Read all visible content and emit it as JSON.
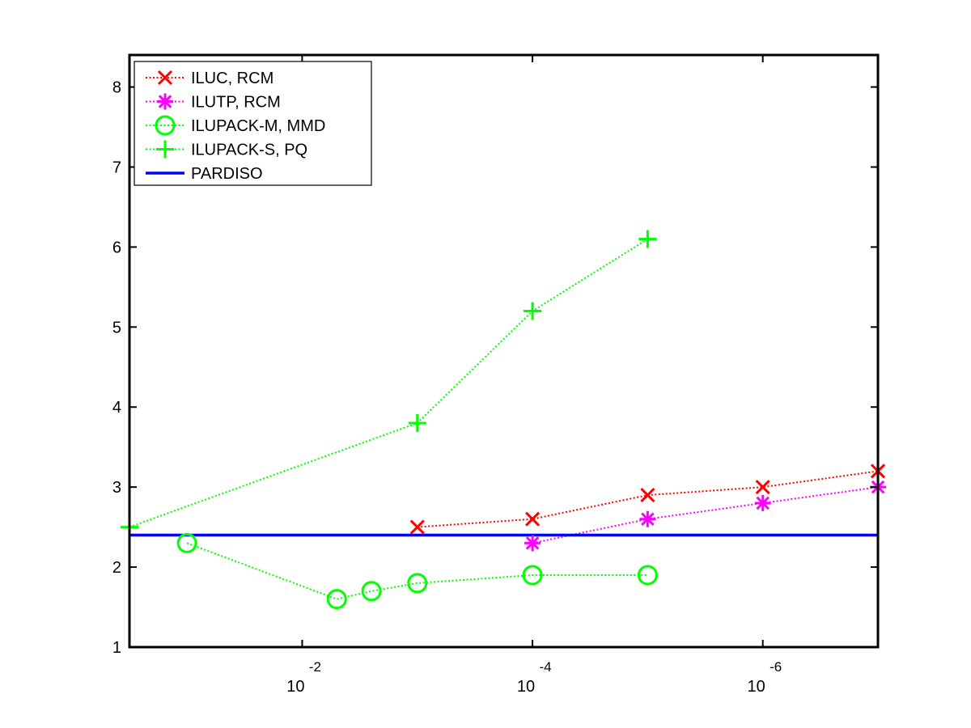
{
  "chart_data": {
    "type": "line",
    "title": "",
    "xlabel": "",
    "ylabel": "",
    "xscale": "log",
    "xaxis_direction": "decreasing",
    "xlim": [
      0.316,
      1e-07
    ],
    "ylim": [
      1,
      8.4
    ],
    "grid": false,
    "legend_position": "top-left",
    "yticks": [
      {
        "value": 1,
        "label": "1"
      },
      {
        "value": 2,
        "label": "2"
      },
      {
        "value": 3,
        "label": "3"
      },
      {
        "value": 4,
        "label": "4"
      },
      {
        "value": 5,
        "label": "5"
      },
      {
        "value": 6,
        "label": "6"
      },
      {
        "value": 7,
        "label": "7"
      },
      {
        "value": 8,
        "label": "8"
      }
    ],
    "xticks": [
      {
        "value": 0.01,
        "base": "10",
        "exponent": "-2"
      },
      {
        "value": 0.0001,
        "base": "10",
        "exponent": "-4"
      },
      {
        "value": 1e-06,
        "base": "10",
        "exponent": "-6"
      }
    ],
    "series": [
      {
        "name": "ILUC, RCM",
        "color": "#ff0000",
        "marker": "x",
        "line_style": "dotted",
        "points": [
          [
            0.001,
            2.5
          ],
          [
            0.0001,
            2.6
          ],
          [
            1e-05,
            2.9
          ],
          [
            1e-06,
            3.0
          ],
          [
            1e-07,
            3.2
          ]
        ]
      },
      {
        "name": "ILUTP, RCM",
        "color": "#ff00ff",
        "marker": "asterisk",
        "line_style": "dotted",
        "points": [
          [
            0.0001,
            2.3
          ],
          [
            1e-05,
            2.6
          ],
          [
            1e-06,
            2.8
          ],
          [
            1e-07,
            3.0
          ]
        ]
      },
      {
        "name": "ILUPACK-M, MMD",
        "color": "#00ff00",
        "marker": "circle",
        "line_style": "dotted",
        "points": [
          [
            0.1,
            2.3
          ],
          [
            0.005,
            1.6
          ],
          [
            0.0025,
            1.7
          ],
          [
            0.001,
            1.8
          ],
          [
            0.0001,
            1.9
          ],
          [
            1e-05,
            1.9
          ]
        ]
      },
      {
        "name": "ILUPACK-S, PQ",
        "color": "#00ff00",
        "marker": "plus",
        "line_style": "dotted",
        "points": [
          [
            0.316,
            2.5
          ],
          [
            0.001,
            3.8
          ],
          [
            0.0001,
            5.2
          ],
          [
            1e-05,
            6.1
          ]
        ]
      },
      {
        "name": "PARDISO",
        "color": "#0000ff",
        "marker": "none",
        "line_style": "solid",
        "points": [
          [
            0.316,
            2.4
          ],
          [
            1e-07,
            2.4
          ]
        ]
      }
    ]
  }
}
